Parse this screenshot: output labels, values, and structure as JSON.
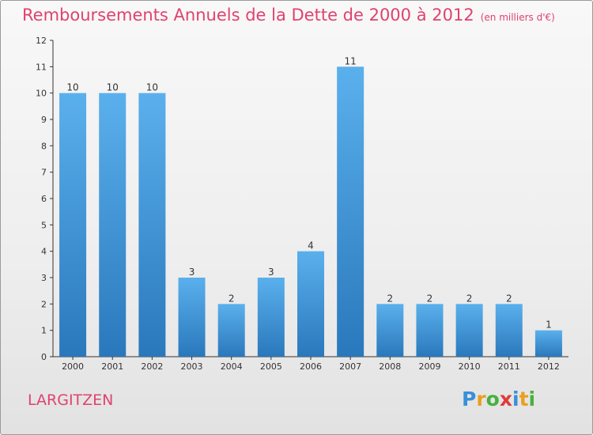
{
  "title": "Remboursements Annuels de la Dette de 2000 à 2012",
  "unit": "(en milliers d'€)",
  "commune": "LARGITZEN",
  "logo": {
    "text": "Proxiti",
    "letters": [
      {
        "ch": "P",
        "color": "#3a8fd8"
      },
      {
        "ch": "r",
        "color": "#e8a020"
      },
      {
        "ch": "o",
        "color": "#48b040"
      },
      {
        "ch": "x",
        "color": "#e03a3a"
      },
      {
        "ch": "i",
        "color": "#3a8fd8"
      },
      {
        "ch": "t",
        "color": "#e8a020"
      },
      {
        "ch": "i",
        "color": "#48b040"
      }
    ]
  },
  "colors": {
    "title": "#e0426e",
    "bar_light": "#5ab0ec",
    "bar_dark": "#2a78bc",
    "axis": "#333333"
  },
  "chart_data": {
    "type": "bar",
    "title": "Remboursements Annuels de la Dette de 2000 à 2012",
    "xlabel": "",
    "ylabel": "",
    "ylim": [
      0,
      12
    ],
    "yticks": [
      0,
      1,
      2,
      3,
      4,
      5,
      6,
      7,
      8,
      9,
      10,
      11,
      12
    ],
    "grid": false,
    "categories": [
      "2000",
      "2001",
      "2002",
      "2003",
      "2004",
      "2005",
      "2006",
      "2007",
      "2008",
      "2009",
      "2010",
      "2011",
      "2012"
    ],
    "values": [
      10,
      10,
      10,
      3,
      2,
      3,
      4,
      11,
      2,
      2,
      2,
      2,
      1
    ]
  }
}
